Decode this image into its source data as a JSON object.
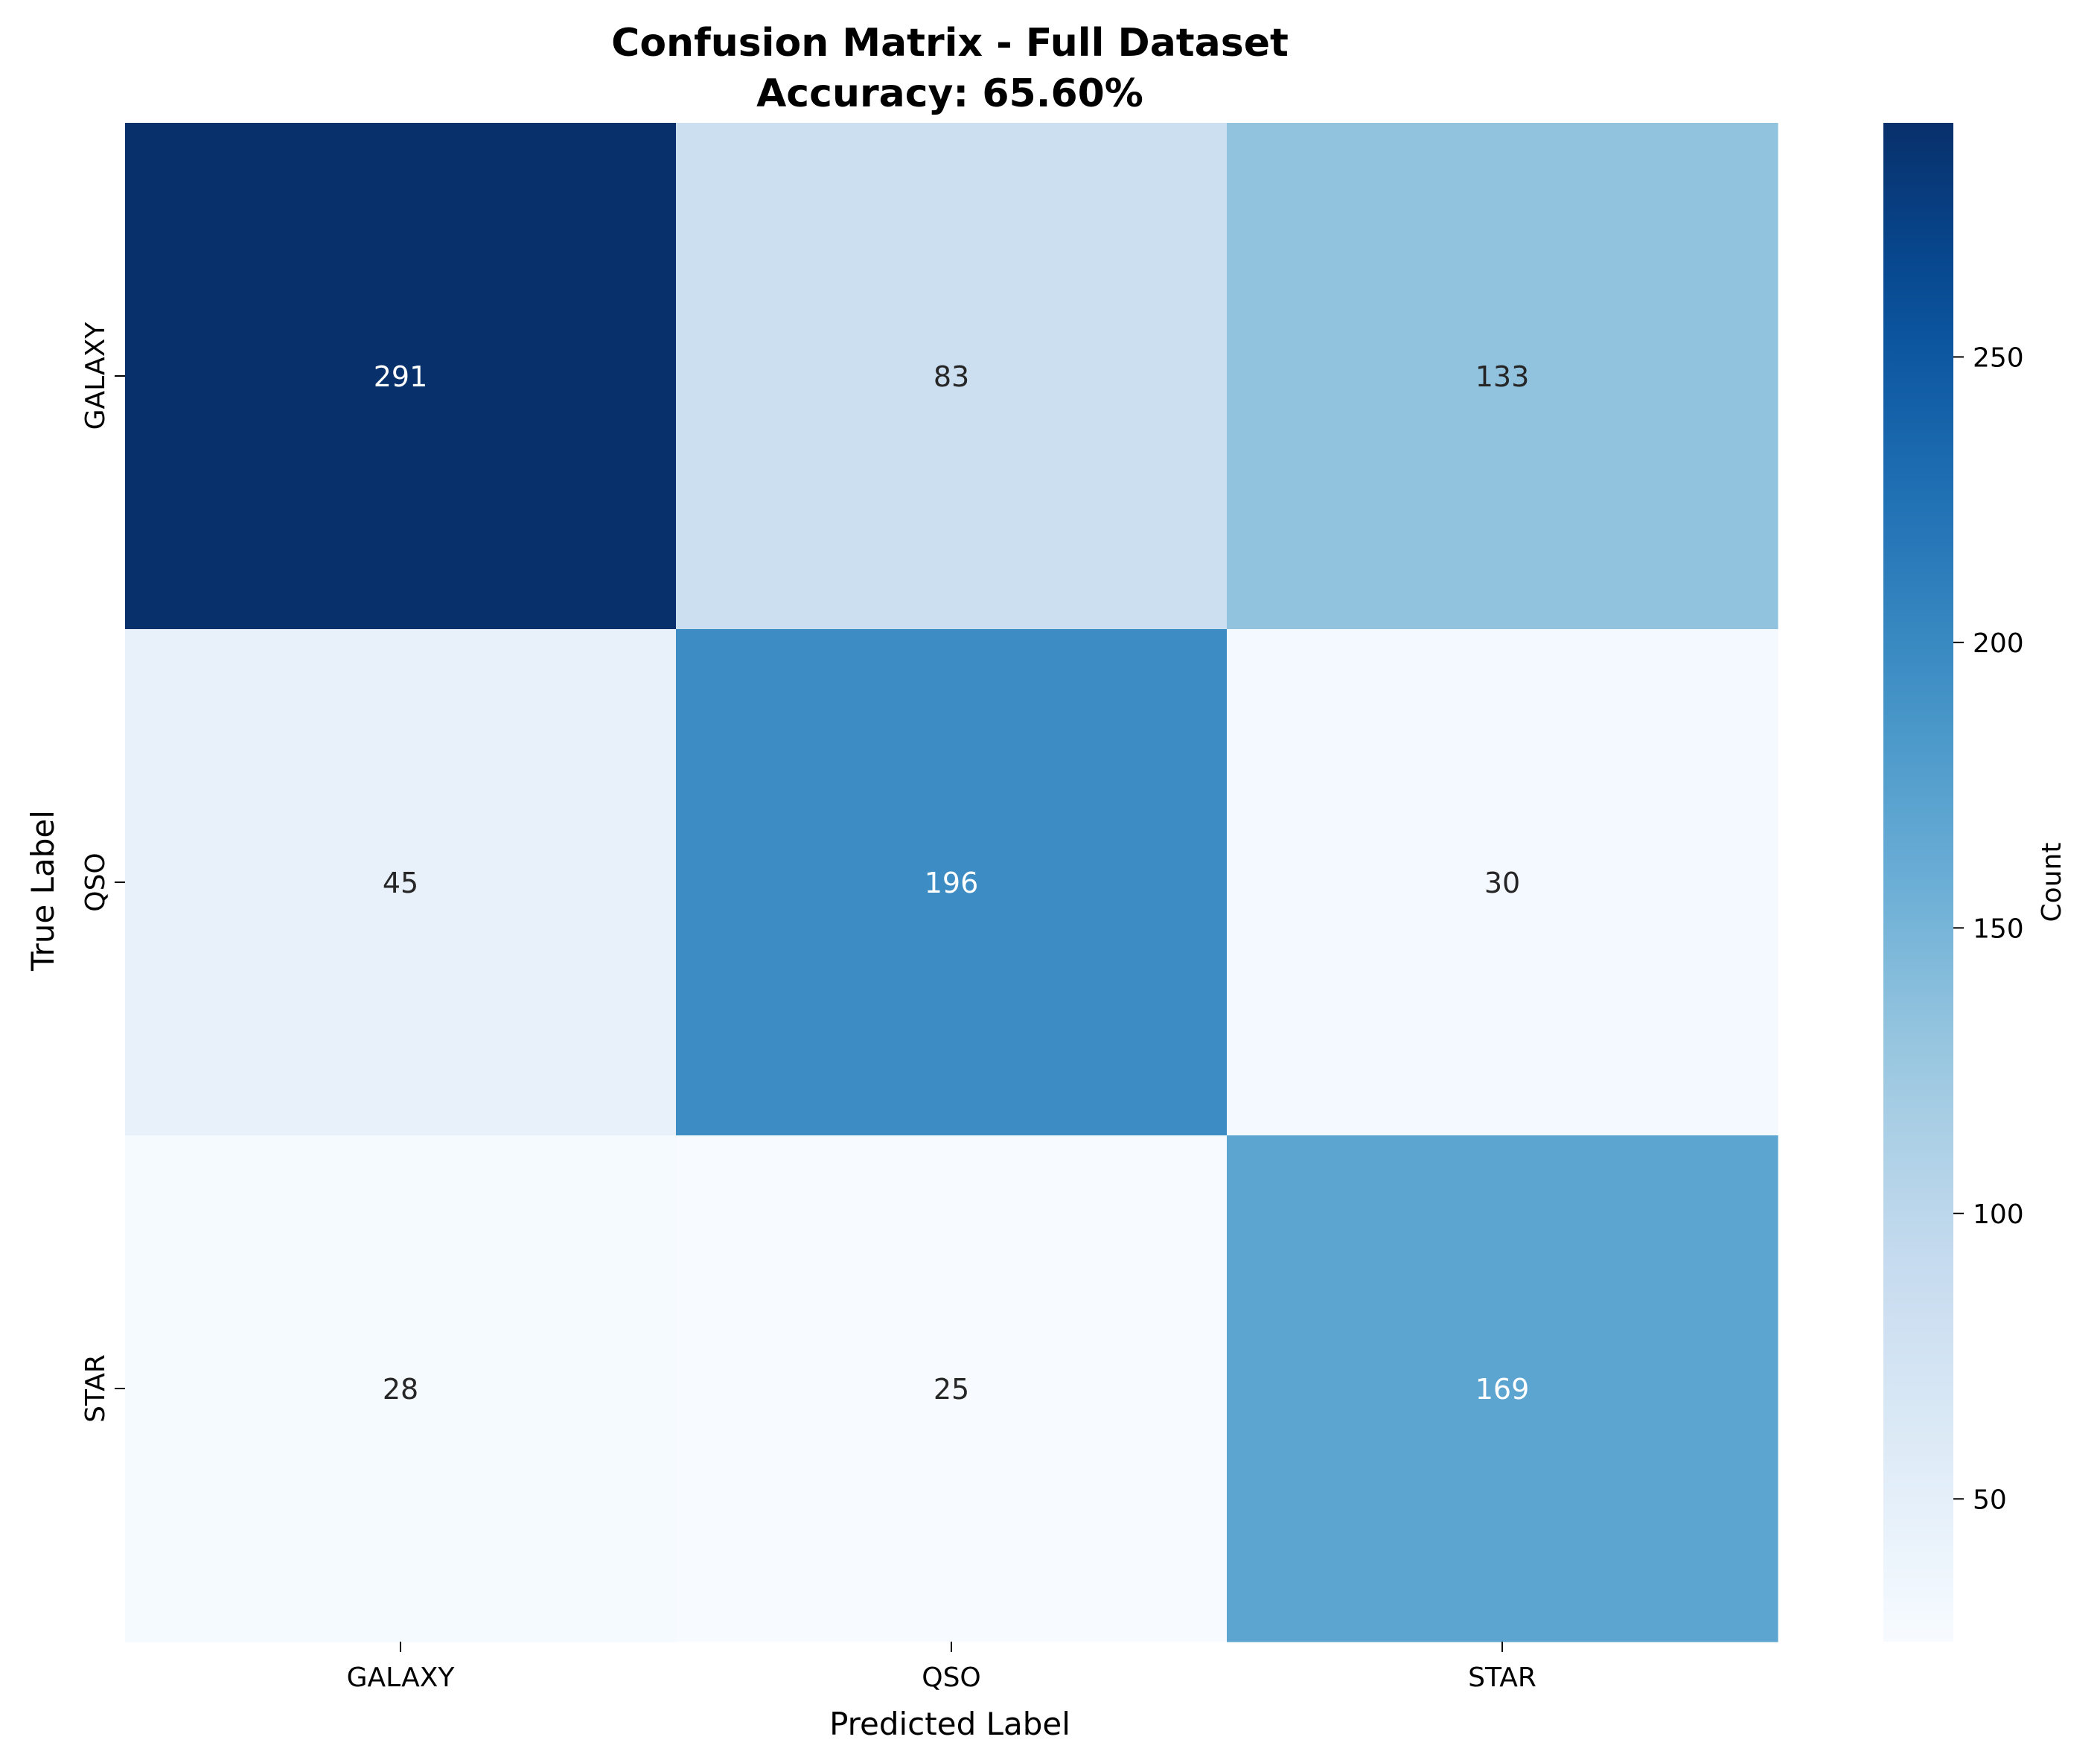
{
  "chart_data": {
    "type": "heatmap",
    "title": "Confusion Matrix - Full Dataset",
    "subtitle": "Accuracy: 65.60%",
    "xlabel": "Predicted Label",
    "ylabel": "True Label",
    "x_categories": [
      "GALAXY",
      "QSO",
      "STAR"
    ],
    "y_categories": [
      "GALAXY",
      "QSO",
      "STAR"
    ],
    "values": [
      [
        291,
        83,
        133
      ],
      [
        45,
        196,
        30
      ],
      [
        28,
        25,
        169
      ]
    ],
    "colormap": "Blues",
    "colorbar": {
      "label": "Count",
      "range": [
        25,
        291
      ],
      "ticks": [
        50,
        100,
        150,
        200,
        250
      ]
    },
    "grid": false,
    "annotation_colors": {
      "light": "#ffffff",
      "dark": "#262626"
    }
  }
}
